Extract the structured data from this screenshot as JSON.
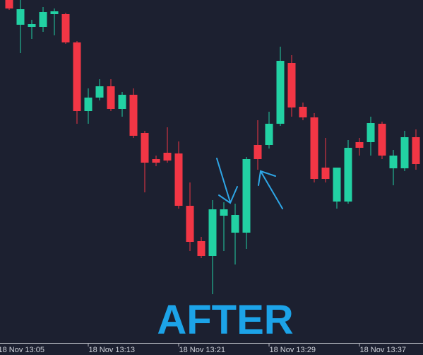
{
  "chart_data": {
    "type": "candlestick",
    "annotations": [
      "AFTER"
    ],
    "categories": [
      null,
      null,
      null,
      null,
      null,
      null,
      null,
      null,
      null,
      null,
      null,
      null,
      null,
      null,
      null,
      null,
      null,
      null,
      null,
      null,
      null,
      null,
      null,
      null,
      null,
      null,
      null,
      null,
      null,
      null,
      null,
      null,
      null,
      null,
      null,
      null,
      null
    ],
    "open": [
      500,
      465,
      462,
      462,
      480,
      480,
      440,
      343,
      362,
      378,
      346,
      366,
      312,
      275,
      284,
      283,
      209,
      159,
      138,
      195,
      171,
      171,
      295,
      295,
      325,
      411,
      349,
      334,
      263,
      215,
      215,
      299,
      299,
      325,
      262,
      262,
      306
    ],
    "high": [
      500,
      500,
      472,
      490,
      488,
      482,
      442,
      375,
      388,
      388,
      370,
      375,
      315,
      280,
      320,
      300,
      242,
      165,
      217,
      214,
      212,
      278,
      330,
      342,
      434,
      422,
      355,
      340,
      305,
      263,
      302,
      305,
      335,
      328,
      288,
      315,
      317
    ],
    "low": [
      486,
      425,
      445,
      455,
      450,
      438,
      325,
      325,
      358,
      343,
      335,
      305,
      228,
      265,
      270,
      205,
      145,
      135,
      84,
      145,
      126,
      148,
      260,
      290,
      322,
      335,
      330,
      242,
      242,
      205,
      212,
      280,
      280,
      275,
      238,
      258,
      260
    ],
    "close": [
      488,
      487,
      466,
      483,
      484,
      440,
      343,
      362,
      378,
      346,
      366,
      308,
      270,
      270,
      273,
      209,
      158,
      138,
      204,
      204,
      196,
      275,
      275,
      325,
      414,
      348,
      334,
      247,
      247,
      263,
      291,
      291,
      326,
      280,
      280,
      306,
      268
    ],
    "up_color": "#22d1a3",
    "down_color": "#f23645",
    "ylim": [
      15,
      500
    ],
    "xticks": [
      {
        "value": -1,
        "label": "18 Nov 13:05"
      },
      {
        "value": 7,
        "label": "18 Nov 13:13"
      },
      {
        "value": 15,
        "label": "18 Nov 13:21"
      },
      {
        "value": 23,
        "label": "18 Nov 13:29"
      },
      {
        "value": 31,
        "label": "18 Nov 13:37"
      }
    ]
  }
}
